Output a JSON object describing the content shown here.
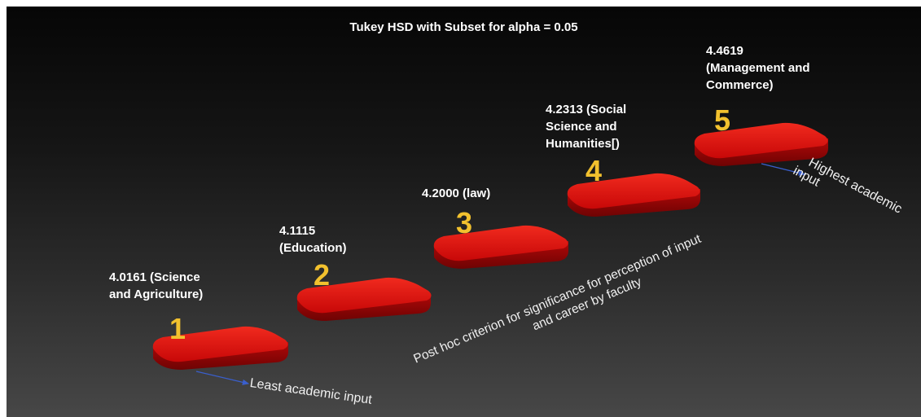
{
  "title": "Tukey HSD with Subset for alpha = 0.05",
  "steps": [
    {
      "number": "1",
      "label_lines": [
        "4.0161 (Science",
        "and Agriculture)"
      ]
    },
    {
      "number": "2",
      "label_lines": [
        "4.1115",
        "(Education)"
      ]
    },
    {
      "number": "3",
      "label_lines": [
        "4.2000 (law)"
      ]
    },
    {
      "number": "4",
      "label_lines": [
        "4.2313 (Social",
        "Science and",
        "Humanities[)"
      ]
    },
    {
      "number": "5",
      "label_lines": [
        "4.4619",
        "(Management and",
        "Commerce)"
      ]
    }
  ],
  "annotations": {
    "least": "Least academic input",
    "highest_line1": "Highest academic",
    "highest_line2": "input",
    "diagonal_line1": "Post hoc criterion for significance for perception of input",
    "diagonal_line2": "and career by faculty"
  },
  "colors": {
    "block_top": "#e01010",
    "block_side": "#9a0606",
    "number": "#f2c12e",
    "arrow": "#3a5fcd"
  }
}
